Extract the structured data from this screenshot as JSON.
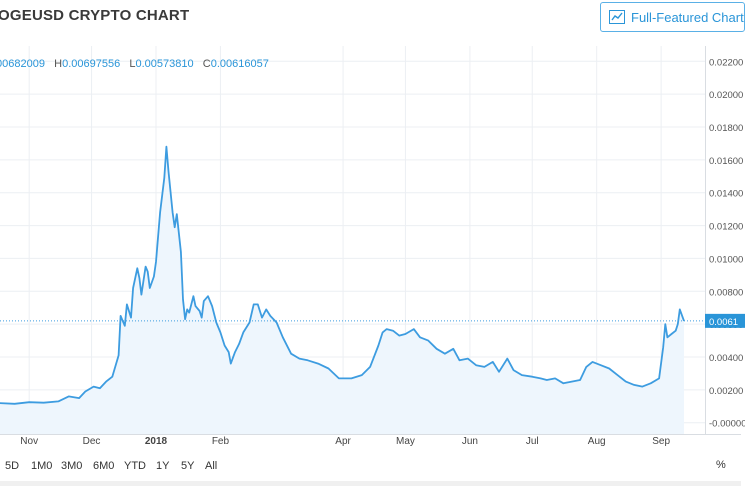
{
  "header": {
    "title": "OGEUSD CRYPTO CHART",
    "full_button_label": "Full-Featured Chart"
  },
  "ohlc": {
    "o": "00682009",
    "h_label": "H",
    "h": "0.00697556",
    "l_label": "L",
    "l": "0.00573810",
    "c_label": "C",
    "c": "0.00616057"
  },
  "range_buttons": [
    "5D",
    "1M0",
    "3M0",
    "6M0",
    "YTD",
    "1Y",
    "5Y",
    "All"
  ],
  "percent_toggle": "%",
  "colors": {
    "line": "#3d9ce0",
    "fill": "#eef6fd",
    "grid": "#eceff3",
    "accent": "#2a95d8"
  },
  "chart_data": {
    "type": "area",
    "title": "",
    "xlabel": "",
    "ylabel": "",
    "x_tick_labels": [
      "Nov",
      "Dec",
      "2018",
      "Feb",
      "Apr",
      "May",
      "Jun",
      "Jul",
      "Aug",
      "Sep"
    ],
    "y_tick_labels": [
      "0.02200",
      "0.02000",
      "0.01800",
      "0.01600",
      "0.01400",
      "0.01200",
      "0.01000",
      "0.00800",
      "0.00600",
      "0.00400",
      "0.00200",
      "-0.00000"
    ],
    "current_price_label": "0.0061",
    "ylim": [
      -0.0002,
      0.0222
    ],
    "x_range": [
      "2017-10-17",
      "2018-09-12"
    ],
    "grid": true,
    "series": [
      {
        "points": [
          [
            "2017-10-17",
            0.0012
          ],
          [
            "2017-10-25",
            0.00115
          ],
          [
            "2017-11-01",
            0.00125
          ],
          [
            "2017-11-08",
            0.00122
          ],
          [
            "2017-11-15",
            0.0013
          ],
          [
            "2017-11-20",
            0.0016
          ],
          [
            "2017-11-25",
            0.0015
          ],
          [
            "2017-11-28",
            0.0019
          ],
          [
            "2017-12-02",
            0.0022
          ],
          [
            "2017-12-05",
            0.0021
          ],
          [
            "2017-12-08",
            0.0025
          ],
          [
            "2017-12-11",
            0.0028
          ],
          [
            "2017-12-14",
            0.0041
          ],
          [
            "2017-12-15",
            0.0065
          ],
          [
            "2017-12-17",
            0.0059
          ],
          [
            "2017-12-18",
            0.0072
          ],
          [
            "2017-12-20",
            0.0064
          ],
          [
            "2017-12-21",
            0.0082
          ],
          [
            "2017-12-23",
            0.0094
          ],
          [
            "2017-12-24",
            0.0088
          ],
          [
            "2017-12-25",
            0.0078
          ],
          [
            "2017-12-27",
            0.0095
          ],
          [
            "2017-12-28",
            0.0092
          ],
          [
            "2017-12-29",
            0.0082
          ],
          [
            "2017-12-31",
            0.0089
          ],
          [
            "2018-01-01",
            0.0098
          ],
          [
            "2018-01-03",
            0.0128
          ],
          [
            "2018-01-05",
            0.0149
          ],
          [
            "2018-01-06",
            0.0168
          ],
          [
            "2018-01-07",
            0.0153
          ],
          [
            "2018-01-09",
            0.0128
          ],
          [
            "2018-01-10",
            0.0119
          ],
          [
            "2018-01-11",
            0.0127
          ],
          [
            "2018-01-13",
            0.0104
          ],
          [
            "2018-01-14",
            0.0075
          ],
          [
            "2018-01-15",
            0.0063
          ],
          [
            "2018-01-16",
            0.0069
          ],
          [
            "2018-01-17",
            0.0067
          ],
          [
            "2018-01-19",
            0.0077
          ],
          [
            "2018-01-20",
            0.0071
          ],
          [
            "2018-01-22",
            0.0068
          ],
          [
            "2018-01-23",
            0.0064
          ],
          [
            "2018-01-24",
            0.0074
          ],
          [
            "2018-01-26",
            0.0077
          ],
          [
            "2018-01-28",
            0.0071
          ],
          [
            "2018-01-30",
            0.0061
          ],
          [
            "2018-02-01",
            0.0055
          ],
          [
            "2018-02-03",
            0.0047
          ],
          [
            "2018-02-05",
            0.0043
          ],
          [
            "2018-02-06",
            0.0036
          ],
          [
            "2018-02-08",
            0.0043
          ],
          [
            "2018-02-10",
            0.0048
          ],
          [
            "2018-02-12",
            0.0055
          ],
          [
            "2018-02-15",
            0.0061
          ],
          [
            "2018-02-17",
            0.0072
          ],
          [
            "2018-02-19",
            0.0072
          ],
          [
            "2018-02-21",
            0.0064
          ],
          [
            "2018-02-23",
            0.0069
          ],
          [
            "2018-02-25",
            0.0065
          ],
          [
            "2018-02-28",
            0.0061
          ],
          [
            "2018-03-03",
            0.0052
          ],
          [
            "2018-03-07",
            0.0042
          ],
          [
            "2018-03-11",
            0.0039
          ],
          [
            "2018-03-15",
            0.0038
          ],
          [
            "2018-03-20",
            0.0036
          ],
          [
            "2018-03-25",
            0.0033
          ],
          [
            "2018-03-30",
            0.0027
          ],
          [
            "2018-04-05",
            0.0027
          ],
          [
            "2018-04-10",
            0.0029
          ],
          [
            "2018-04-14",
            0.0034
          ],
          [
            "2018-04-18",
            0.0047
          ],
          [
            "2018-04-20",
            0.0055
          ],
          [
            "2018-04-22",
            0.0057
          ],
          [
            "2018-04-25",
            0.0056
          ],
          [
            "2018-04-28",
            0.0053
          ],
          [
            "2018-05-01",
            0.0054
          ],
          [
            "2018-05-05",
            0.0057
          ],
          [
            "2018-05-08",
            0.0052
          ],
          [
            "2018-05-12",
            0.005
          ],
          [
            "2018-05-16",
            0.0045
          ],
          [
            "2018-05-20",
            0.0042
          ],
          [
            "2018-05-24",
            0.0045
          ],
          [
            "2018-05-27",
            0.0038
          ],
          [
            "2018-05-31",
            0.0039
          ],
          [
            "2018-06-04",
            0.0035
          ],
          [
            "2018-06-08",
            0.0034
          ],
          [
            "2018-06-12",
            0.0037
          ],
          [
            "2018-06-15",
            0.0031
          ],
          [
            "2018-06-19",
            0.0039
          ],
          [
            "2018-06-22",
            0.0032
          ],
          [
            "2018-06-26",
            0.0029
          ],
          [
            "2018-07-01",
            0.0028
          ],
          [
            "2018-07-05",
            0.0027
          ],
          [
            "2018-07-08",
            0.0026
          ],
          [
            "2018-07-12",
            0.0027
          ],
          [
            "2018-07-16",
            0.0024
          ],
          [
            "2018-07-20",
            0.0025
          ],
          [
            "2018-07-24",
            0.0026
          ],
          [
            "2018-07-27",
            0.0034
          ],
          [
            "2018-07-30",
            0.0037
          ],
          [
            "2018-08-03",
            0.0035
          ],
          [
            "2018-08-07",
            0.0033
          ],
          [
            "2018-08-11",
            0.0029
          ],
          [
            "2018-08-15",
            0.0025
          ],
          [
            "2018-08-19",
            0.0023
          ],
          [
            "2018-08-23",
            0.0022
          ],
          [
            "2018-08-27",
            0.0024
          ],
          [
            "2018-08-31",
            0.0027
          ],
          [
            "2018-09-02",
            0.0046
          ],
          [
            "2018-09-03",
            0.006
          ],
          [
            "2018-09-04",
            0.0052
          ],
          [
            "2018-09-06",
            0.0054
          ],
          [
            "2018-09-08",
            0.0056
          ],
          [
            "2018-09-09",
            0.006
          ],
          [
            "2018-09-10",
            0.0069
          ],
          [
            "2018-09-12",
            0.0062
          ]
        ]
      }
    ]
  }
}
